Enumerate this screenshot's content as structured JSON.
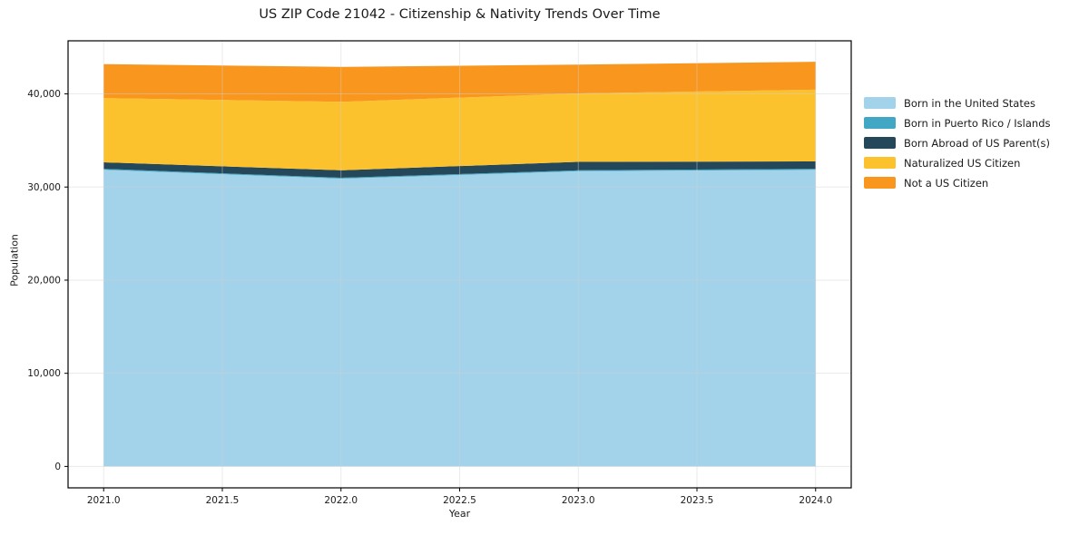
{
  "chart_data": {
    "type": "area",
    "stacked": true,
    "title": "US ZIP Code 21042 - Citizenship & Nativity Trends Over Time",
    "xlabel": "Year",
    "ylabel": "Population",
    "x": [
      2021,
      2022,
      2023,
      2024
    ],
    "series": [
      {
        "name": "Born in the United States",
        "color": "#a3d3ea",
        "values": [
          31850,
          30900,
          31700,
          31850
        ]
      },
      {
        "name": "Born in Puerto Rico / Islands",
        "color": "#41a7c4",
        "values": [
          100,
          100,
          100,
          100
        ]
      },
      {
        "name": "Born Abroad of US Parent(s)",
        "color": "#24475a",
        "values": [
          700,
          800,
          900,
          800
        ]
      },
      {
        "name": "Naturalized US Citizen",
        "color": "#fcc22d",
        "values": [
          6900,
          7350,
          7350,
          7700
        ]
      },
      {
        "name": "Not a US Citizen",
        "color": "#f8961d",
        "values": [
          3650,
          3750,
          3100,
          3000
        ]
      }
    ],
    "x_ticks": [
      2021.0,
      2021.5,
      2022.0,
      2022.5,
      2023.0,
      2023.5,
      2024.0
    ],
    "y_ticks": [
      0,
      10000,
      20000,
      30000,
      40000
    ],
    "xlim": [
      2020.85,
      2024.15
    ],
    "ylim": [
      -2300,
      45700
    ],
    "grid": true,
    "legend_position": "right",
    "colors": {
      "grid": "#d0d0d0",
      "spine": "#000000",
      "background": "#ffffff"
    }
  }
}
